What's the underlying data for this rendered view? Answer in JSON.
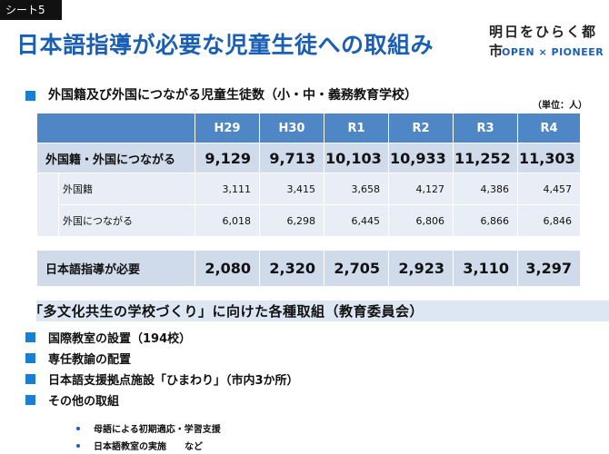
{
  "sheet_tag": "シート5",
  "title": "日本語指導が必要な児童生徒への取組み",
  "brand": {
    "jp": "明日をひらく都市",
    "en": "OPEN × PIONEER"
  },
  "section1": {
    "heading": "外国籍及び外国につながる児童生徒数（小・中・義務教育学校）",
    "unit": "（単位：人）"
  },
  "table": {
    "columns": [
      "H29",
      "H30",
      "R1",
      "R2",
      "R3",
      "R4"
    ],
    "main_row": {
      "label": "外国籍・外国につながる",
      "values": [
        "9,129",
        "9,713",
        "10,103",
        "10,933",
        "11,252",
        "11,303"
      ]
    },
    "sub_rows": [
      {
        "label": "外国籍",
        "values": [
          "3,111",
          "3,415",
          "3,658",
          "4,127",
          "4,386",
          "4,457"
        ]
      },
      {
        "label": "外国につながる",
        "values": [
          "6,018",
          "6,298",
          "6,445",
          "6,806",
          "6,866",
          "6,846"
        ]
      }
    ],
    "total_row": {
      "label": "日本語指導が必要",
      "values": [
        "2,080",
        "2,320",
        "2,705",
        "2,923",
        "3,110",
        "3,297"
      ]
    }
  },
  "banner": "「多文化共生の学校づくり」に向けた各種取組（教育委員会）",
  "items": [
    "国際教室の設置（194校）",
    "専任教諭の配置",
    "日本語支援拠点施設「ひまわり」（市内3か所）",
    "その他の取組"
  ],
  "subitems": [
    "母語による初期適応・学習支援",
    "日本語教室の実施　　など"
  ],
  "colors": {
    "title_blue": "#1a5fb4",
    "header_blue": "#4f86c6",
    "row_blue": "#cfdaeb",
    "row_light": "#e8edf6",
    "bullet": "#1a7fd0"
  }
}
